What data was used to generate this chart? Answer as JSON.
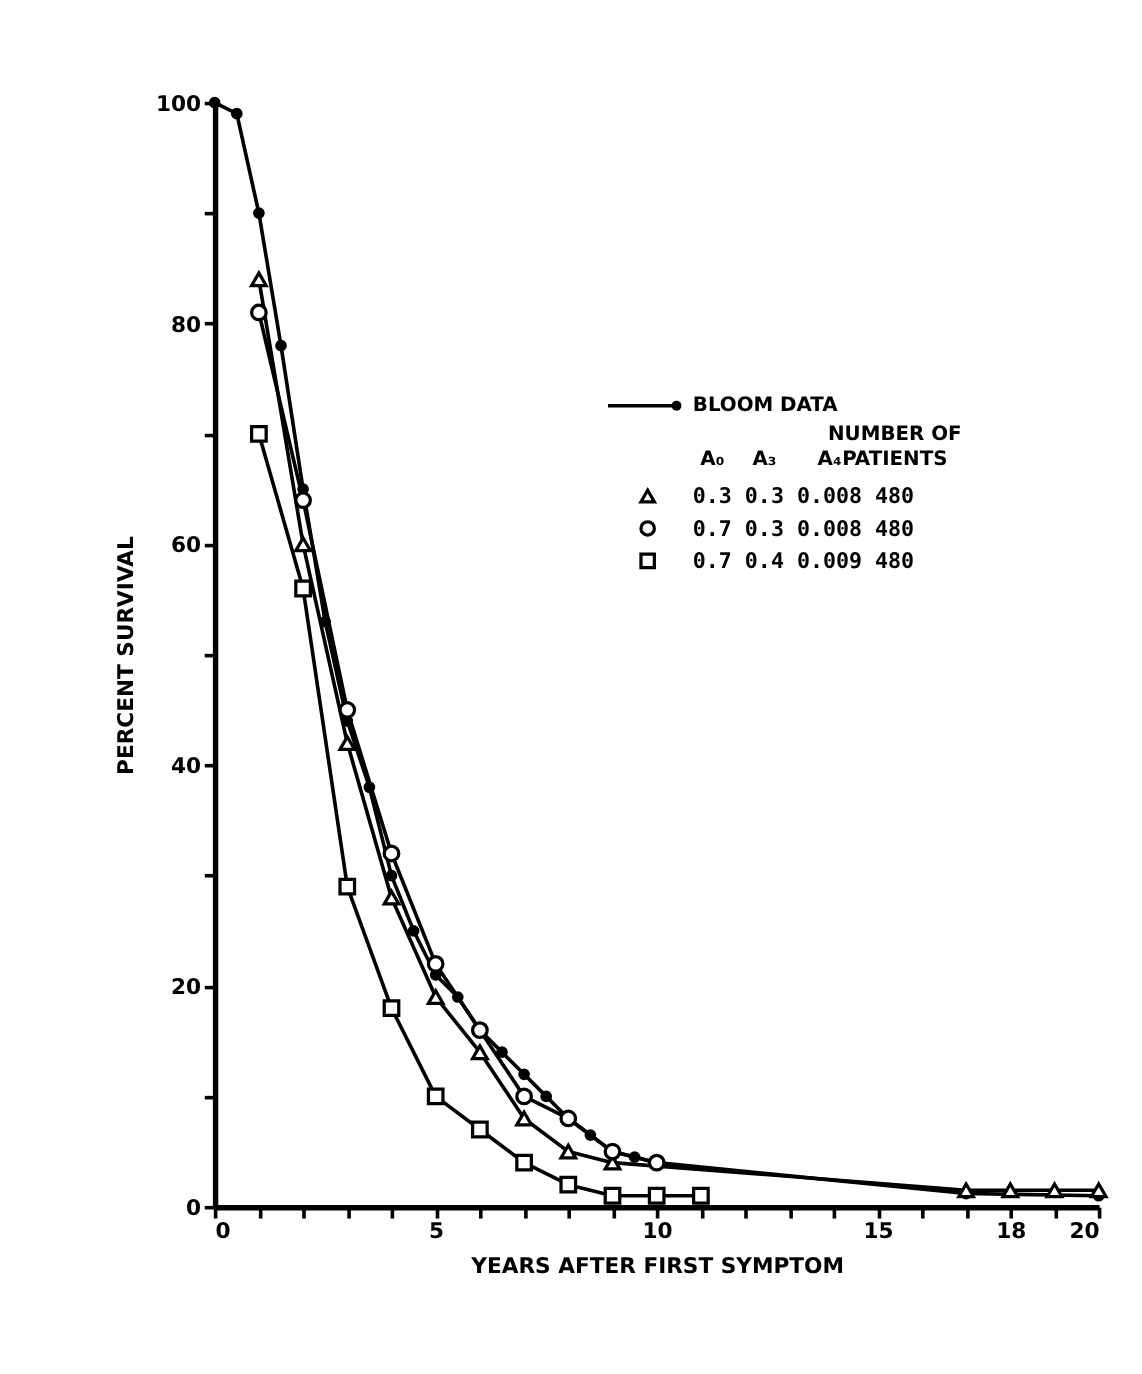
{
  "chart_data": {
    "type": "line",
    "xlabel": "YEARS AFTER FIRST SYMPTOM",
    "ylabel": "PERCENT SURVIVAL",
    "xlim": [
      0,
      20
    ],
    "ylim": [
      0,
      100
    ],
    "xticks": [
      0,
      {
        "value": 1,
        "label": null
      },
      {
        "value": 2,
        "label": null
      },
      {
        "value": 3,
        "label": null
      },
      {
        "value": 4,
        "label": null
      },
      5,
      {
        "value": 6,
        "label": null
      },
      {
        "value": 7,
        "label": null
      },
      {
        "value": 8,
        "label": null
      },
      {
        "value": 9,
        "label": null
      },
      10,
      {
        "value": 11,
        "label": null
      },
      {
        "value": 12,
        "label": null
      },
      {
        "value": 13,
        "label": null
      },
      {
        "value": 14,
        "label": null
      },
      15,
      {
        "value": 16,
        "label": null
      },
      {
        "value": 17,
        "label": null
      },
      18,
      {
        "value": 19,
        "label": null
      },
      20
    ],
    "yticks": [
      0,
      {
        "value": 10,
        "label": null
      },
      20,
      {
        "value": 30,
        "label": null
      },
      40,
      {
        "value": 50,
        "label": null
      },
      60,
      {
        "value": 70,
        "label": null
      },
      80,
      {
        "value": 90,
        "label": null
      },
      100
    ],
    "grid": false,
    "legend": "top right",
    "annotations": [
      "A₀",
      "A₃",
      "A₄",
      "NUMBER OF",
      "PATIENTS"
    ],
    "series": [
      {
        "name": "BLOOM DATA",
        "color": "#000000",
        "marker": "circle",
        "x": [
          0,
          0.5,
          1,
          1.5,
          2,
          2.5,
          3,
          3.5,
          4,
          4.5,
          5,
          5.5,
          6,
          6.5,
          7,
          7.5,
          8,
          8.5,
          9,
          9.5,
          10,
          17,
          20
        ],
        "values": [
          100,
          99,
          90,
          78,
          65,
          53,
          44,
          38,
          30,
          25,
          21,
          19,
          16,
          14,
          12,
          10,
          8,
          6.5,
          5,
          4.5,
          4,
          1.2,
          1
        ]
      },
      {
        "name": "0.3 0.3 0.008 480",
        "color": "#000000",
        "marker": "triangle",
        "x": [
          1,
          2,
          3,
          4,
          5,
          6,
          7,
          8,
          9,
          17,
          18,
          19,
          20
        ],
        "values": [
          84,
          60,
          42,
          28,
          19,
          14,
          8,
          5,
          4,
          1.5,
          1.5,
          1.5,
          1.5
        ]
      },
      {
        "name": "0.7 0.3 0.008 480",
        "color": "#000000",
        "marker": "circle",
        "x": [
          1,
          2,
          3,
          4,
          5,
          6,
          7,
          8,
          9,
          10
        ],
        "values": [
          81,
          64,
          45,
          32,
          22,
          16,
          10,
          8,
          5,
          4
        ]
      },
      {
        "name": "0.7 0.4 0.009 480",
        "color": "#000000",
        "marker": "square",
        "x": [
          1,
          2,
          3,
          4,
          5,
          6,
          7,
          8,
          9,
          10,
          11
        ],
        "values": [
          70,
          56,
          29,
          18,
          10,
          7,
          4,
          2,
          1,
          1,
          1
        ]
      }
    ]
  }
}
